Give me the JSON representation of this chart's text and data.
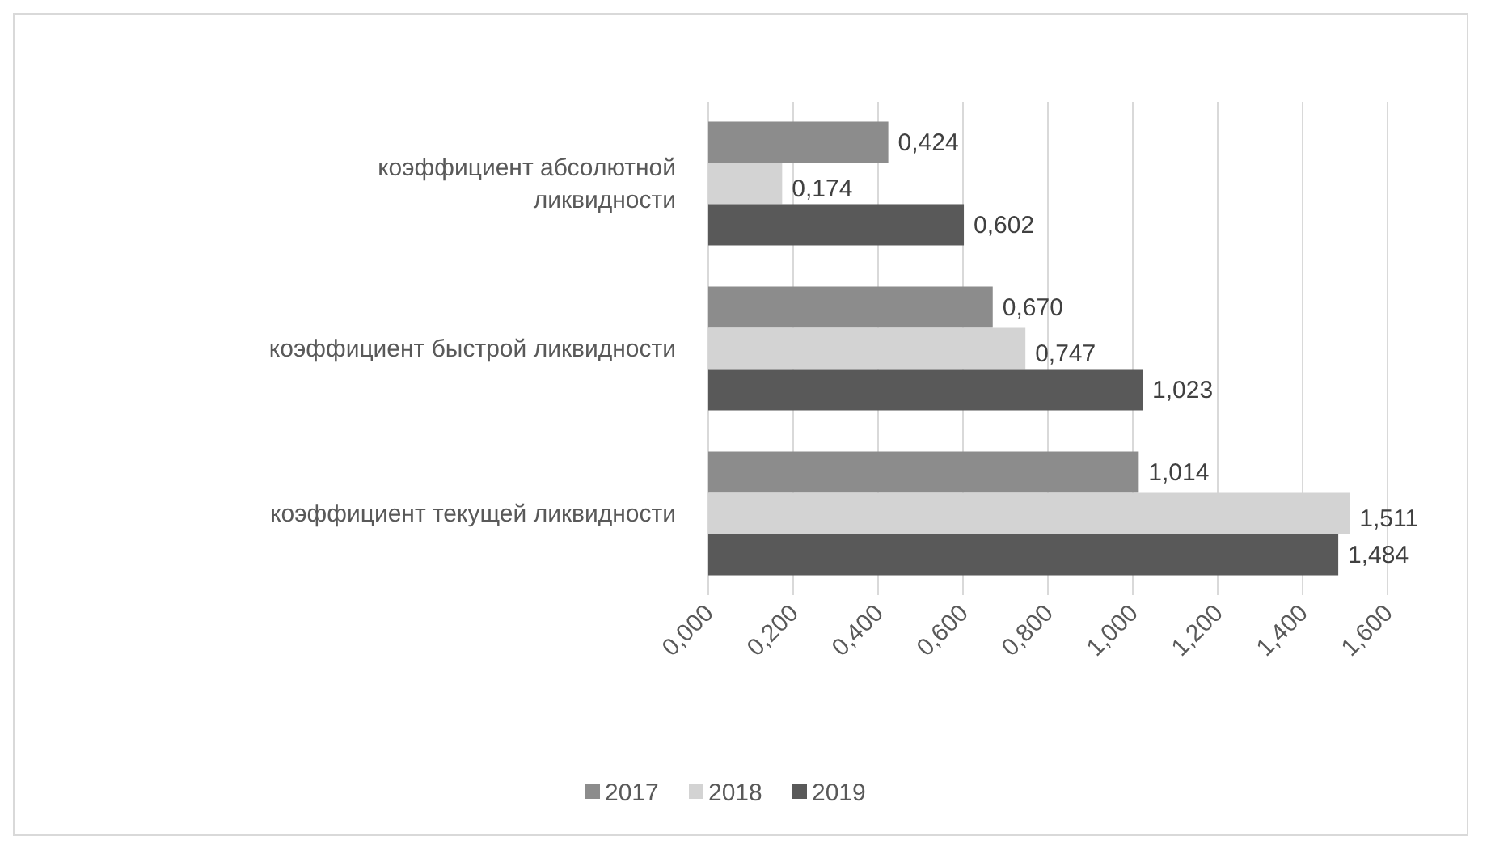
{
  "chart_data": {
    "type": "bar",
    "orientation": "horizontal",
    "categories": [
      "коэффициент абсолютной ликвидности",
      "коэффициент быстрой ликвидности",
      "коэффициент текущей ликвидности"
    ],
    "series": [
      {
        "name": "2017",
        "color": "#8c8c8c",
        "values": [
          0.424,
          0.67,
          1.014
        ],
        "value_labels": [
          "0,424",
          "0,670",
          "1,014"
        ]
      },
      {
        "name": "2018",
        "color": "#d3d3d3",
        "values": [
          0.174,
          0.747,
          1.511
        ],
        "value_labels": [
          "0,174",
          "0,747",
          "1,511"
        ]
      },
      {
        "name": "2019",
        "color": "#595959",
        "values": [
          0.602,
          1.023,
          1.484
        ],
        "value_labels": [
          "0,602",
          "1,023",
          "1,484"
        ]
      }
    ],
    "xlim": [
      0,
      1.6
    ],
    "xticks": [
      {
        "value": 0,
        "label": "0,000"
      },
      {
        "value": 0.2,
        "label": "0,200"
      },
      {
        "value": 0.4,
        "label": "0,400"
      },
      {
        "value": 0.6,
        "label": "0,600"
      },
      {
        "value": 0.8,
        "label": "0,800"
      },
      {
        "value": 1,
        "label": "1,000"
      },
      {
        "value": 1.2,
        "label": "1,200"
      },
      {
        "value": 1.4,
        "label": "1,400"
      },
      {
        "value": 1.6,
        "label": "1,600"
      }
    ],
    "grid": "x",
    "legend": "bottom"
  }
}
